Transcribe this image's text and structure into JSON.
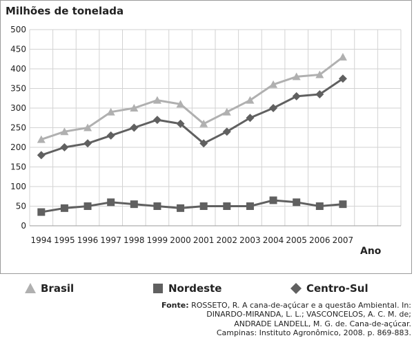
{
  "chart_data": {
    "type": "line",
    "title": "Milhões de tonelada",
    "xlabel": "Ano",
    "ylabel": "",
    "ylim": [
      0,
      500
    ],
    "yticks": [
      "0",
      "50",
      "100",
      "150",
      "200",
      "250",
      "300",
      "350",
      "400",
      "450",
      "500"
    ],
    "categories": [
      "1994",
      "1995",
      "1996",
      "1997",
      "1998",
      "1999",
      "2000",
      "2001",
      "2002",
      "2003",
      "2004",
      "2005",
      "2006",
      "2007"
    ],
    "grid": true,
    "series": [
      {
        "name": "Brasil",
        "marker": "triangle",
        "color": "#b0b0b0",
        "values": [
          220,
          240,
          250,
          290,
          300,
          320,
          310,
          260,
          290,
          320,
          360,
          380,
          385,
          430
        ]
      },
      {
        "name": "Nordeste",
        "marker": "square",
        "color": "#606060",
        "values": [
          35,
          45,
          50,
          60,
          55,
          50,
          45,
          50,
          50,
          50,
          65,
          60,
          50,
          55
        ]
      },
      {
        "name": "Centro-Sul",
        "marker": "diamond",
        "color": "#606060",
        "values": [
          180,
          200,
          210,
          230,
          250,
          270,
          260,
          210,
          240,
          275,
          300,
          330,
          335,
          375
        ]
      }
    ]
  },
  "source": {
    "label": "Fonte:",
    "lines": [
      "ROSSETO, R. A cana-de-açúcar e a questão Ambiental. In:",
      "DINARDO-MIRANDA, L. L.; VASCONCELOS, A. C. M. de;",
      "ANDRADE LANDELL, M. G. de. Cana-de-açúcar.",
      "Campinas: Instituto Agronômico, 2008. p. 869-883."
    ]
  }
}
